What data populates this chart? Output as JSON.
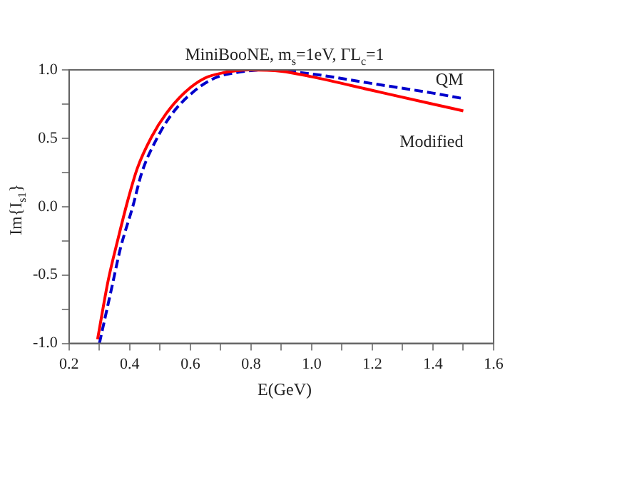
{
  "chart_data": {
    "type": "line",
    "title": "MiniBooNE, m$_{s}$=1eV, ΓL$_{c}$=1",
    "xlabel": "E(GeV)",
    "ylabel": "Im{I$_{s1}$}",
    "xlim": [
      0.2,
      1.6
    ],
    "ylim": [
      -1.0,
      1.0
    ],
    "xticks": [
      {
        "value": 0.2,
        "label": "0.2"
      },
      {
        "value": 0.3,
        "label": null
      },
      {
        "value": 0.4,
        "label": "0.4"
      },
      {
        "value": 0.5,
        "label": null
      },
      {
        "value": 0.6,
        "label": "0.6"
      },
      {
        "value": 0.7,
        "label": null
      },
      {
        "value": 0.8,
        "label": "0.8"
      },
      {
        "value": 0.9,
        "label": null
      },
      {
        "value": 1.0,
        "label": "1.0"
      },
      {
        "value": 1.1,
        "label": null
      },
      {
        "value": 1.2,
        "label": "1.2"
      },
      {
        "value": 1.3,
        "label": null
      },
      {
        "value": 1.4,
        "label": "1.4"
      },
      {
        "value": 1.5,
        "label": null
      },
      {
        "value": 1.6,
        "label": "1.6"
      }
    ],
    "yticks": [
      {
        "value": -1.0,
        "label": "-1.0"
      },
      {
        "value": -0.75,
        "label": null
      },
      {
        "value": -0.5,
        "label": "-0.5"
      },
      {
        "value": -0.25,
        "label": null
      },
      {
        "value": 0.0,
        "label": "0.0"
      },
      {
        "value": 0.25,
        "label": null
      },
      {
        "value": 0.5,
        "label": "0.5"
      },
      {
        "value": 0.75,
        "label": null
      },
      {
        "value": 1.0,
        "label": "1.0"
      }
    ],
    "grid": false,
    "marker": "none",
    "series": [
      {
        "name": "Modified",
        "color": "#ff0000",
        "line_style": "solid",
        "x": [
          0.294,
          0.329,
          0.361,
          0.393,
          0.425,
          0.472,
          0.52,
          0.584,
          0.648,
          0.711,
          0.791,
          0.9,
          1.0,
          1.2,
          1.4,
          1.5
        ],
        "values": [
          -0.97,
          -0.54,
          -0.24,
          0.04,
          0.28,
          0.51,
          0.68,
          0.84,
          0.94,
          0.98,
          1.0,
          0.99,
          0.95,
          0.85,
          0.75,
          0.7
        ]
      },
      {
        "name": "QM",
        "color": "#0000cc",
        "line_style": "dashed",
        "x": [
          0.3,
          0.34,
          0.37,
          0.41,
          0.44,
          0.49,
          0.54,
          0.61,
          0.68,
          0.75,
          0.85,
          1.0,
          1.2,
          1.4,
          1.5
        ],
        "values": [
          -1.0,
          -0.6,
          -0.3,
          0.0,
          0.25,
          0.5,
          0.68,
          0.84,
          0.94,
          0.98,
          1.0,
          0.97,
          0.9,
          0.83,
          0.79
        ]
      }
    ]
  }
}
